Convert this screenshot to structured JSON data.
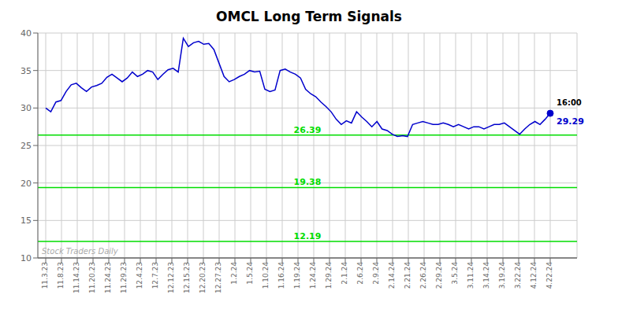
{
  "chart_data": {
    "type": "line",
    "title": "OMCL Long Term Signals",
    "color": "#0000cc",
    "grid": true,
    "x": [
      0,
      0.3232,
      0.6465,
      0.9697,
      1.2929,
      1.6162,
      1.9394,
      2.2626,
      2.5859,
      2.9091,
      3.2323,
      3.5556,
      3.8788,
      4.202,
      4.5253,
      4.8485,
      5.1717,
      5.4949,
      5.8182,
      6.1414,
      6.4646,
      6.7879,
      7.1111,
      7.4343,
      7.7576,
      8.0808,
      8.404,
      8.7273,
      9.0505,
      9.3737,
      9.697,
      10.0202,
      10.3434,
      10.6667,
      10.9899,
      11.3131,
      11.6364,
      11.9596,
      12.2828,
      12.6061,
      12.9293,
      13.2525,
      13.5758,
      13.899,
      14.2222,
      14.5455,
      14.8687,
      15.1919,
      15.5152,
      15.8384,
      16.1616,
      16.4848,
      16.8081,
      17.1313,
      17.4545,
      17.7778,
      18.101,
      18.4242,
      18.7475,
      19.0707,
      19.3939,
      19.7172,
      20.0404,
      20.3636,
      20.6869,
      21.0101,
      21.3333,
      21.6566,
      21.9798,
      22.303,
      22.6263,
      22.9495,
      23.2727,
      23.596,
      23.9192,
      24.2424,
      24.5657,
      24.8889,
      25.2121,
      25.5354,
      25.8586,
      26.1818,
      26.5051,
      26.8283,
      27.1515,
      27.4747,
      27.798,
      28.1212,
      28.4444,
      28.7677,
      29.0909,
      29.4141,
      29.7374,
      30.0606,
      30.3838,
      30.7071,
      31.0303,
      31.3535,
      31.6768,
      32
    ],
    "values": [
      30.0,
      29.5,
      30.8,
      31.0,
      32.2,
      33.1,
      33.3,
      32.7,
      32.2,
      32.8,
      33.0,
      33.3,
      34.1,
      34.5,
      34.0,
      33.5,
      34.0,
      34.8,
      34.2,
      34.5,
      35.0,
      34.8,
      33.8,
      34.5,
      35.1,
      35.3,
      34.8,
      39.3,
      38.2,
      38.7,
      38.9,
      38.5,
      38.6,
      37.8,
      36.0,
      34.2,
      33.5,
      33.8,
      34.2,
      34.5,
      35.0,
      34.8,
      34.9,
      32.5,
      32.2,
      32.4,
      35.0,
      35.2,
      34.8,
      34.5,
      34.0,
      32.5,
      31.9,
      31.5,
      30.8,
      30.2,
      29.5,
      28.5,
      27.8,
      28.3,
      28.0,
      29.5,
      28.8,
      28.2,
      27.5,
      28.2,
      27.2,
      27.0,
      26.5,
      26.2,
      26.3,
      26.2,
      27.8,
      28.0,
      28.2,
      28.0,
      27.8,
      27.8,
      28.0,
      27.8,
      27.5,
      27.8,
      27.5,
      27.2,
      27.5,
      27.5,
      27.2,
      27.5,
      27.8,
      27.8,
      28.0,
      27.5,
      27.0,
      26.5,
      27.2,
      27.8,
      28.2,
      27.8,
      28.5,
      29.29
    ],
    "xlim": [
      -0.5,
      33.7
    ],
    "xticks": [
      {
        "value": 0,
        "label": "11.3.23"
      },
      {
        "value": 1,
        "label": "11.8.23"
      },
      {
        "value": 2,
        "label": "11.14.23"
      },
      {
        "value": 3,
        "label": "11.20.23"
      },
      {
        "value": 4,
        "label": "11.24.23"
      },
      {
        "value": 5,
        "label": "11.29.23"
      },
      {
        "value": 6,
        "label": "12.4.23"
      },
      {
        "value": 7,
        "label": "12.7.23"
      },
      {
        "value": 8,
        "label": "12.12.23"
      },
      {
        "value": 9,
        "label": "12.15.23"
      },
      {
        "value": 10,
        "label": "12.20.23"
      },
      {
        "value": 11,
        "label": "12.27.23"
      },
      {
        "value": 12,
        "label": "1.2.24"
      },
      {
        "value": 13,
        "label": "1.5.24"
      },
      {
        "value": 14,
        "label": "1.10.24"
      },
      {
        "value": 15,
        "label": "1.16.24"
      },
      {
        "value": 16,
        "label": "1.19.24"
      },
      {
        "value": 17,
        "label": "1.24.24"
      },
      {
        "value": 18,
        "label": "1.29.24"
      },
      {
        "value": 19,
        "label": "2.1.24"
      },
      {
        "value": 20,
        "label": "2.6.24"
      },
      {
        "value": 21,
        "label": "2.9.24"
      },
      {
        "value": 22,
        "label": "2.14.24"
      },
      {
        "value": 23,
        "label": "2.21.24"
      },
      {
        "value": 24,
        "label": "2.26.24"
      },
      {
        "value": 25,
        "label": "2.29.24"
      },
      {
        "value": 26,
        "label": "3.5.24"
      },
      {
        "value": 27,
        "label": "3.11.24"
      },
      {
        "value": 28,
        "label": "3.14.24"
      },
      {
        "value": 29,
        "label": "3.19.24"
      },
      {
        "value": 30,
        "label": "3.22.24"
      },
      {
        "value": 31,
        "label": "4.12.24"
      },
      {
        "value": 32,
        "label": "4.22.24"
      }
    ],
    "ylim": [
      10,
      40
    ],
    "yticks": [
      10,
      15,
      20,
      25,
      30,
      35,
      40
    ],
    "hlines": [
      {
        "y": 26.39,
        "label": "26.39",
        "color": "#00dd00"
      },
      {
        "y": 19.38,
        "label": "19.38",
        "color": "#00dd00"
      },
      {
        "y": 12.19,
        "label": "12.19",
        "color": "#00dd00"
      }
    ],
    "watermark": "Stock Traders Daily",
    "last_point_labels": [
      "16:00",
      "29.29"
    ]
  }
}
